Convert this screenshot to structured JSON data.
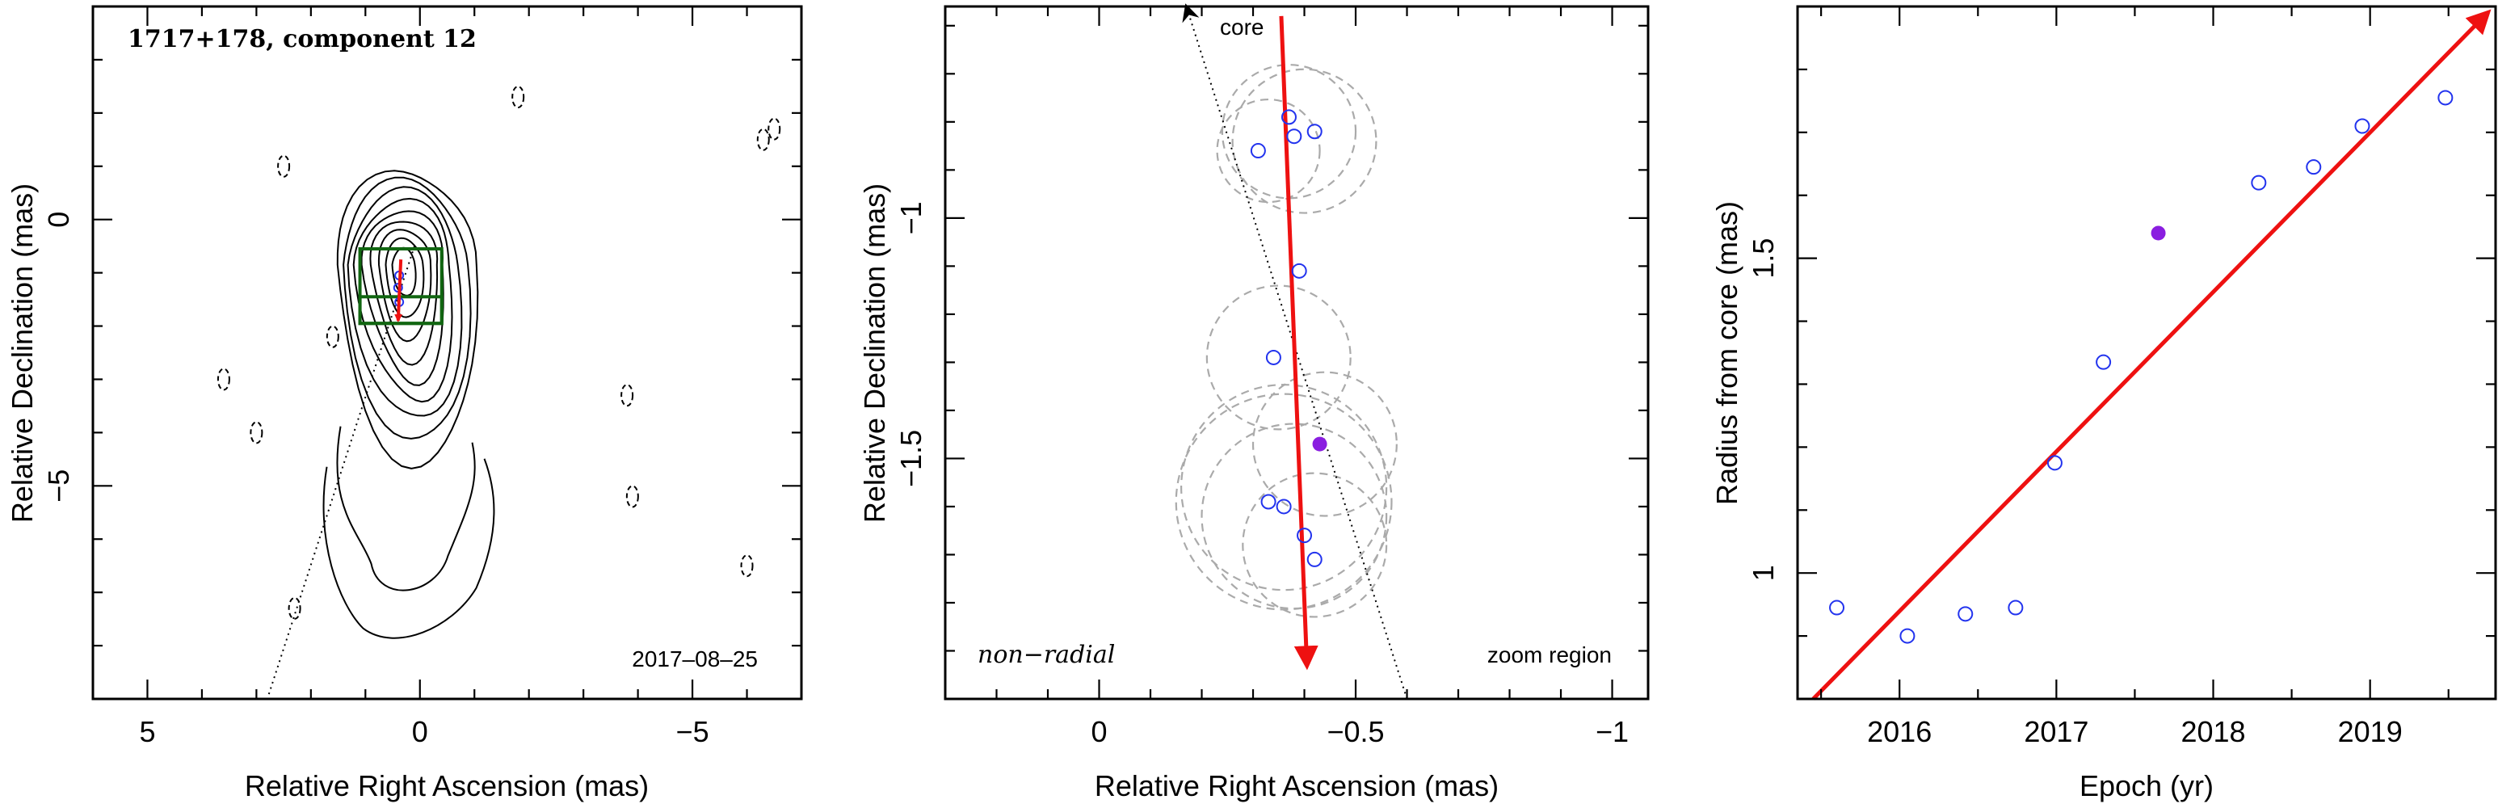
{
  "colors": {
    "fit_line": "#ee1111",
    "point_open": "#2233ee",
    "point_filled": "#8a1ee0",
    "circle": "#aaaaaa",
    "box": "#116611",
    "contour": "#000000"
  },
  "chart_data": [
    {
      "type": "contour-map",
      "title": "1717+178, component 12",
      "date": "2017–08–25",
      "xlabel": "Relative Right Ascension (mas)",
      "ylabel": "Relative Declination (mas)",
      "xlim": [
        6,
        -7
      ],
      "ylim": [
        -9,
        4
      ],
      "xticks": [
        5,
        0,
        -5
      ],
      "xtick_labels": [
        "5",
        "0",
        "−5"
      ],
      "yticks": [
        0,
        -5
      ],
      "ytick_labels": [
        "0",
        "−5"
      ],
      "zoom_boxes": [
        {
          "x": [
            1.1,
            -0.4
          ],
          "y": [
            -1.95,
            -0.55
          ]
        },
        {
          "x": [
            1.1,
            -0.4
          ],
          "y": [
            -1.95,
            -1.45
          ]
        }
      ],
      "arrow": {
        "from": [
          0.35,
          -0.75
        ],
        "to": [
          0.4,
          -1.9
        ]
      },
      "direction_line": {
        "from": [
          0.1,
          -0.5
        ],
        "to": [
          2.8,
          -9
        ]
      }
    },
    {
      "type": "scatter",
      "xlabel": "Relative Right Ascension (mas)",
      "ylabel": "Relative Declination (mas)",
      "xlim": [
        0.3,
        -1.07
      ],
      "ylim": [
        -2.0,
        -0.56
      ],
      "xticks": [
        0,
        -0.5,
        -1
      ],
      "xtick_labels": [
        "0",
        "−0.5",
        "−1"
      ],
      "yticks": [
        -1,
        -1.5
      ],
      "ytick_labels": [
        "−1",
        "−1.5"
      ],
      "labels": {
        "core": "core",
        "non_radial": "non−radial",
        "zoom": "zoom region"
      },
      "points": [
        {
          "x": -0.37,
          "y": -0.79
        },
        {
          "x": -0.38,
          "y": -0.83
        },
        {
          "x": -0.42,
          "y": -0.82
        },
        {
          "x": -0.31,
          "y": -0.86
        },
        {
          "x": -0.39,
          "y": -1.11
        },
        {
          "x": -0.34,
          "y": -1.29
        },
        {
          "x": -0.33,
          "y": -1.59
        },
        {
          "x": -0.36,
          "y": -1.6
        },
        {
          "x": -0.4,
          "y": -1.66
        },
        {
          "x": -0.42,
          "y": -1.71
        }
      ],
      "filled_point": {
        "x": -0.43,
        "y": -1.47
      },
      "error_circles": [
        {
          "x": -0.37,
          "y": -0.82,
          "r": 0.13
        },
        {
          "x": -0.33,
          "y": -0.86,
          "r": 0.1
        },
        {
          "x": -0.4,
          "y": -0.84,
          "r": 0.14
        },
        {
          "x": -0.35,
          "y": -1.29,
          "r": 0.14
        },
        {
          "x": -0.36,
          "y": -1.59,
          "r": 0.21
        },
        {
          "x": -0.38,
          "y": -1.62,
          "r": 0.18
        },
        {
          "x": -0.42,
          "y": -1.68,
          "r": 0.14
        },
        {
          "x": -0.44,
          "y": -1.47,
          "r": 0.14
        },
        {
          "x": -0.36,
          "y": -1.56,
          "r": 0.2
        }
      ],
      "arrow": {
        "from": [
          -0.355,
          -0.58
        ],
        "to": [
          -0.405,
          -1.93
        ]
      },
      "core_line": {
        "from": [
          -0.6,
          -2.0
        ],
        "to": [
          -0.17,
          -0.56
        ]
      }
    },
    {
      "type": "scatter",
      "xlabel": "Epoch (yr)",
      "ylabel": "Radius from core (mas)",
      "xlim": [
        2015.35,
        2019.8
      ],
      "ylim": [
        0.8,
        1.9
      ],
      "xticks": [
        2016,
        2017,
        2018,
        2019
      ],
      "xtick_labels": [
        "2016",
        "2017",
        "2018",
        "2019"
      ],
      "yticks": [
        1,
        1.5
      ],
      "ytick_labels": [
        "1",
        "1.5"
      ],
      "points": [
        {
          "x": 2015.6,
          "y": 0.945
        },
        {
          "x": 2016.05,
          "y": 0.9
        },
        {
          "x": 2016.42,
          "y": 0.935
        },
        {
          "x": 2016.74,
          "y": 0.945
        },
        {
          "x": 2016.99,
          "y": 1.175
        },
        {
          "x": 2017.3,
          "y": 1.335
        },
        {
          "x": 2018.29,
          "y": 1.62
        },
        {
          "x": 2018.64,
          "y": 1.645
        },
        {
          "x": 2018.95,
          "y": 1.71
        },
        {
          "x": 2019.48,
          "y": 1.755
        }
      ],
      "filled_point": {
        "x": 2017.65,
        "y": 1.54
      },
      "fit_line": {
        "from": [
          2015.45,
          0.8
        ],
        "to": [
          2019.75,
          1.89
        ]
      }
    }
  ]
}
